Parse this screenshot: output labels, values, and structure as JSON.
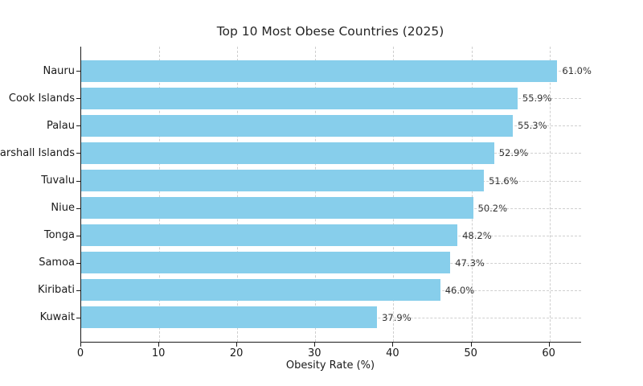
{
  "chart_data": {
    "type": "bar",
    "orientation": "horizontal",
    "title": "Top 10 Most Obese Countries (2025)",
    "xlabel": "Obesity Rate (%)",
    "ylabel": "",
    "categories": [
      "Nauru",
      "Cook Islands",
      "Palau",
      "Marshall Islands",
      "Tuvalu",
      "Niue",
      "Tonga",
      "Samoa",
      "Kiribati",
      "Kuwait"
    ],
    "values": [
      61.0,
      55.9,
      55.3,
      52.9,
      51.6,
      50.2,
      48.2,
      47.3,
      46.0,
      37.9
    ],
    "value_labels": [
      "61.0%",
      "55.9%",
      "55.3%",
      "52.9%",
      "51.6%",
      "50.2%",
      "48.2%",
      "47.3%",
      "46.0%",
      "37.9%"
    ],
    "x_ticks": [
      0,
      10,
      20,
      30,
      40,
      50,
      60
    ],
    "xlim": [
      0,
      64.05
    ],
    "bar_color": "#87CEEB",
    "grid": "dashed, both axes",
    "legend": "none",
    "sorted": "descending"
  },
  "colors": {
    "background": "#ffffff",
    "bar": "#87CEEB",
    "axis": "#1a1a1a",
    "grid": "#cfcfcf",
    "value_label": "#333333"
  }
}
